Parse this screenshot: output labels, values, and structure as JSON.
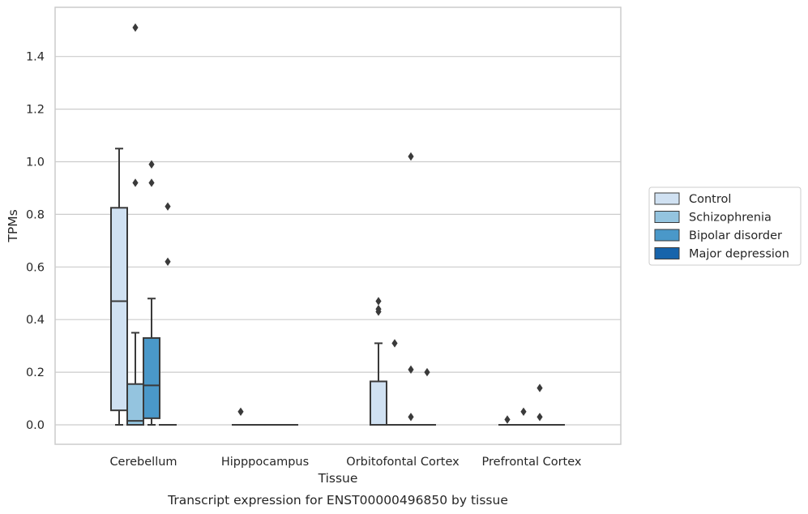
{
  "chart_data": {
    "type": "box",
    "title": "",
    "caption": "Transcript expression for ENST00000496850 by tissue",
    "xlabel": "Tissue",
    "ylabel": "TPMs",
    "ylim": [
      -0.075,
      1.58
    ],
    "yticks": [
      "0.0",
      "0.2",
      "0.4",
      "0.6",
      "0.8",
      "1.0",
      "1.2",
      "1.4"
    ],
    "ytick_values": [
      0.0,
      0.2,
      0.4,
      0.6,
      0.8,
      1.0,
      1.2,
      1.4
    ],
    "grid": "horizontal",
    "legend_position": "right",
    "categories": [
      "Cerebellum",
      "Hipppocampus",
      "Orbitofontal Cortex",
      "Prefrontal Cortex"
    ],
    "series": [
      {
        "name": "Control",
        "color": "#d0e1f2",
        "boxes": [
          {
            "category": "Cerebellum",
            "whisker_low": 0.0,
            "q1": 0.055,
            "median": 0.47,
            "q3": 0.825,
            "whisker_high": 1.05,
            "outliers": []
          },
          {
            "category": "Hipppocampus",
            "whisker_low": 0.0,
            "q1": 0.0,
            "median": 0.0,
            "q3": 0.0,
            "whisker_high": 0.0,
            "outliers": [
              0.05
            ]
          },
          {
            "category": "Orbitofontal Cortex",
            "whisker_low": 0.0,
            "q1": 0.0,
            "median": 0.0,
            "q3": 0.165,
            "whisker_high": 0.31,
            "outliers": [
              0.43,
              0.44,
              0.47
            ]
          },
          {
            "category": "Prefrontal Cortex",
            "whisker_low": 0.0,
            "q1": 0.0,
            "median": 0.0,
            "q3": 0.0,
            "whisker_high": 0.0,
            "outliers": [
              0.02
            ]
          }
        ]
      },
      {
        "name": "Schizophrenia",
        "color": "#94c4df",
        "boxes": [
          {
            "category": "Cerebellum",
            "whisker_low": 0.0,
            "q1": 0.0,
            "median": 0.015,
            "q3": 0.155,
            "whisker_high": 0.35,
            "outliers": [
              0.92,
              1.51
            ]
          },
          {
            "category": "Hipppocampus",
            "whisker_low": 0.0,
            "q1": 0.0,
            "median": 0.0,
            "q3": 0.0,
            "whisker_high": 0.0,
            "outliers": []
          },
          {
            "category": "Orbitofontal Cortex",
            "whisker_low": 0.0,
            "q1": 0.0,
            "median": 0.0,
            "q3": 0.0,
            "whisker_high": 0.0,
            "outliers": [
              0.31
            ]
          },
          {
            "category": "Prefrontal Cortex",
            "whisker_low": 0.0,
            "q1": 0.0,
            "median": 0.0,
            "q3": 0.0,
            "whisker_high": 0.0,
            "outliers": [
              0.05
            ]
          }
        ]
      },
      {
        "name": "Bipolar disorder",
        "color": "#4a98c9",
        "boxes": [
          {
            "category": "Cerebellum",
            "whisker_low": 0.0,
            "q1": 0.025,
            "median": 0.15,
            "q3": 0.33,
            "whisker_high": 0.48,
            "outliers": [
              0.92,
              0.99
            ]
          },
          {
            "category": "Hipppocampus",
            "whisker_low": 0.0,
            "q1": 0.0,
            "median": 0.0,
            "q3": 0.0,
            "whisker_high": 0.0,
            "outliers": []
          },
          {
            "category": "Orbitofontal Cortex",
            "whisker_low": 0.0,
            "q1": 0.0,
            "median": 0.0,
            "q3": 0.0,
            "whisker_high": 0.0,
            "outliers": [
              0.03,
              0.21,
              1.02
            ]
          },
          {
            "category": "Prefrontal Cortex",
            "whisker_low": 0.0,
            "q1": 0.0,
            "median": 0.0,
            "q3": 0.0,
            "whisker_high": 0.0,
            "outliers": [
              0.03,
              0.14
            ]
          }
        ]
      },
      {
        "name": "Major depression",
        "color": "#1764ab",
        "boxes": [
          {
            "category": "Cerebellum",
            "whisker_low": 0.0,
            "q1": 0.0,
            "median": 0.0,
            "q3": 0.0,
            "whisker_high": 0.0,
            "outliers": [
              0.62,
              0.83
            ]
          },
          {
            "category": "Hipppocampus",
            "whisker_low": 0.0,
            "q1": 0.0,
            "median": 0.0,
            "q3": 0.0,
            "whisker_high": 0.0,
            "outliers": []
          },
          {
            "category": "Orbitofontal Cortex",
            "whisker_low": 0.0,
            "q1": 0.0,
            "median": 0.0,
            "q3": 0.0,
            "whisker_high": 0.0,
            "outliers": [
              0.2
            ]
          },
          {
            "category": "Prefrontal Cortex",
            "whisker_low": 0.0,
            "q1": 0.0,
            "median": 0.0,
            "q3": 0.0,
            "whisker_high": 0.0,
            "outliers": []
          }
        ]
      }
    ]
  },
  "colors": {
    "grid": "#cccccc",
    "frame": "#cccccc",
    "line": "#3a3a3a",
    "text": "#262626"
  }
}
